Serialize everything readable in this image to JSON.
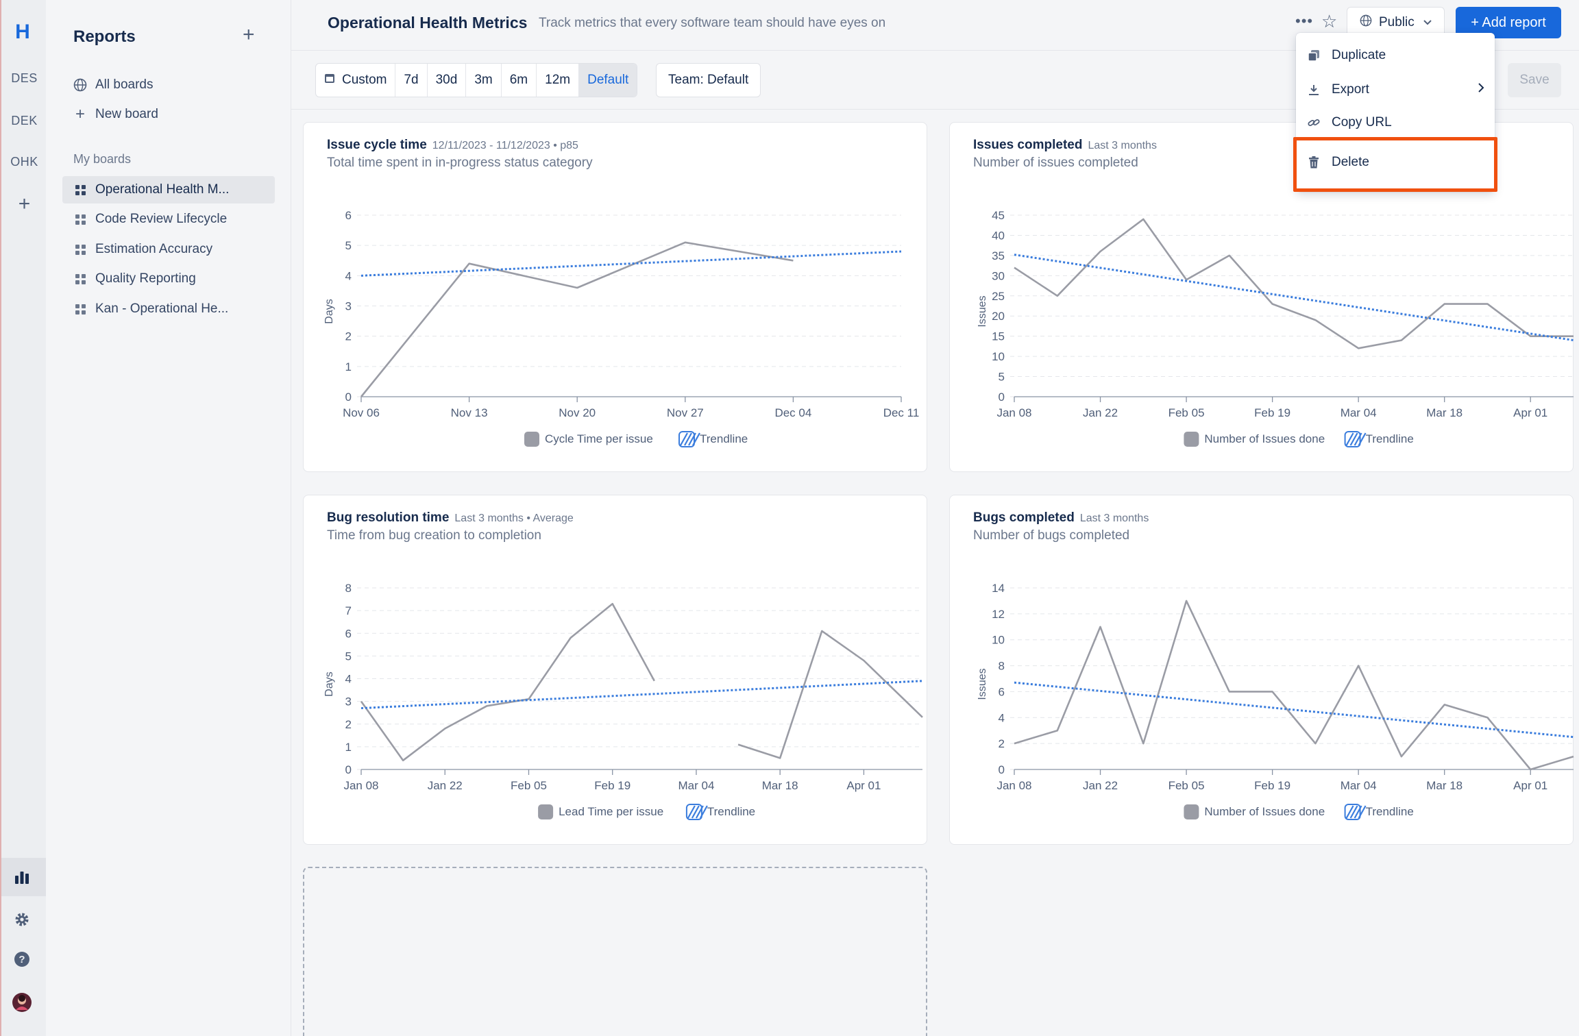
{
  "rail": {
    "logo": "H",
    "projects": [
      "DES",
      "DEK",
      "OHK"
    ],
    "add": "+"
  },
  "sidebar": {
    "title": "Reports",
    "nav": [
      {
        "label": "All boards",
        "icon": "globe-icon"
      },
      {
        "label": "New board",
        "icon": "plus-icon"
      }
    ],
    "section": "My boards",
    "boards": [
      {
        "label": "Operational Health M...",
        "active": true
      },
      {
        "label": "Code Review Lifecycle",
        "active": false
      },
      {
        "label": "Estimation Accuracy",
        "active": false
      },
      {
        "label": "Quality Reporting",
        "active": false
      },
      {
        "label": "Kan - Operational He...",
        "active": false
      }
    ]
  },
  "header": {
    "title": "Operational Health Metrics",
    "subtitle": "Track metrics that every software team should have eyes on",
    "visibility": "Public",
    "add_report": "+ Add report"
  },
  "toolbar": {
    "ranges": [
      "Custom",
      "7d",
      "30d",
      "3m",
      "6m",
      "12m",
      "Default"
    ],
    "selected_range": "Default",
    "team": "Team: Default",
    "save": "Save"
  },
  "menu": {
    "items": [
      {
        "label": "Duplicate",
        "icon": "duplicate-icon"
      },
      {
        "label": "Export",
        "icon": "download-icon",
        "submenu": true
      },
      {
        "label": "Copy URL",
        "icon": "link-icon"
      },
      {
        "label": "Delete",
        "icon": "trash-icon"
      }
    ],
    "highlighted": "Delete"
  },
  "colors": {
    "accent": "#1868db",
    "series": "#9a9ca5",
    "trend": "#3b7ddd",
    "highlight": "#f0500f"
  },
  "chart_data": [
    {
      "type": "line",
      "title": "Issue cycle time",
      "meta": "12/11/2023 - 11/12/2023 • p85",
      "subtitle": "Total time spent in in-progress status category",
      "ylabel": "Days",
      "ylim": [
        0,
        6
      ],
      "yticks": [
        0,
        1,
        2,
        3,
        4,
        5,
        6
      ],
      "xlim": [
        0,
        35
      ],
      "xticks": [
        {
          "v": 0,
          "label": "Nov 06"
        },
        {
          "v": 7,
          "label": "Nov 13"
        },
        {
          "v": 14,
          "label": "Nov 20"
        },
        {
          "v": 21,
          "label": "Nov 27"
        },
        {
          "v": 28,
          "label": "Dec 04"
        },
        {
          "v": 35,
          "label": "Dec 11"
        }
      ],
      "series": [
        {
          "name": "Cycle Time per issue",
          "points": [
            [
              0,
              0
            ],
            [
              7,
              4.4
            ],
            [
              14,
              3.6
            ],
            [
              21,
              5.1
            ],
            [
              28,
              4.5
            ]
          ]
        }
      ],
      "trend": {
        "name": "Trendline",
        "from": [
          0,
          4.0
        ],
        "to": [
          35,
          4.8
        ]
      }
    },
    {
      "type": "line",
      "title": "Issues completed",
      "meta": "Last 3 months",
      "subtitle": "Number of issues completed",
      "ylabel": "Issues",
      "ylim": [
        0,
        45
      ],
      "yticks": [
        0,
        5,
        10,
        15,
        20,
        25,
        30,
        35,
        40,
        45
      ],
      "xlim": [
        0,
        13
      ],
      "xticks": [
        {
          "v": 0,
          "label": "Jan 08"
        },
        {
          "v": 2,
          "label": "Jan 22"
        },
        {
          "v": 4,
          "label": "Feb 05"
        },
        {
          "v": 6,
          "label": "Feb 19"
        },
        {
          "v": 8,
          "label": "Mar 04"
        },
        {
          "v": 10,
          "label": "Mar 18"
        },
        {
          "v": 12,
          "label": "Apr 01"
        }
      ],
      "series": [
        {
          "name": "Number of Issues done",
          "points": [
            [
              0,
              32
            ],
            [
              1,
              25
            ],
            [
              2,
              36
            ],
            [
              3,
              44
            ],
            [
              4,
              29
            ],
            [
              5,
              35
            ],
            [
              6,
              23
            ],
            [
              7,
              19
            ],
            [
              8,
              12
            ],
            [
              9,
              14
            ],
            [
              10,
              23
            ],
            [
              11,
              23
            ],
            [
              12,
              15
            ],
            [
              13,
              15
            ]
          ]
        }
      ],
      "trend": {
        "name": "Trendline",
        "from": [
          0,
          35.2
        ],
        "to": [
          13,
          14
        ]
      }
    },
    {
      "type": "line",
      "title": "Bug resolution time",
      "meta": "Last 3 months • Average",
      "subtitle": "Time from bug creation to completion",
      "ylabel": "Days",
      "ylim": [
        0,
        8
      ],
      "yticks": [
        0,
        1,
        2,
        3,
        4,
        5,
        6,
        7,
        8
      ],
      "xlim": [
        0,
        13.4
      ],
      "xticks": [
        {
          "v": 0,
          "label": "Jan 08"
        },
        {
          "v": 2,
          "label": "Jan 22"
        },
        {
          "v": 4,
          "label": "Feb 05"
        },
        {
          "v": 6,
          "label": "Feb 19"
        },
        {
          "v": 8,
          "label": "Mar 04"
        },
        {
          "v": 10,
          "label": "Mar 18"
        },
        {
          "v": 12,
          "label": "Apr 01"
        }
      ],
      "series": [
        {
          "name": "Lead Time per issue",
          "points": [
            [
              0,
              3.0
            ],
            [
              1,
              0.4
            ],
            [
              2,
              1.8
            ],
            [
              3,
              2.8
            ],
            [
              4,
              3.1
            ],
            [
              5,
              5.8
            ],
            [
              6,
              7.3
            ],
            [
              7,
              3.9
            ]
          ]
        },
        {
          "name": "",
          "points": [
            [
              9,
              1.1
            ],
            [
              10,
              0.5
            ],
            [
              11,
              6.1
            ],
            [
              12,
              4.8
            ],
            [
              13.4,
              2.3
            ]
          ]
        }
      ],
      "trend": {
        "name": "Trendline",
        "from": [
          0,
          2.7
        ],
        "to": [
          13.4,
          3.9
        ]
      }
    },
    {
      "type": "line",
      "title": "Bugs completed",
      "meta": "Last 3 months",
      "subtitle": "Number of bugs completed",
      "ylabel": "Issues",
      "ylim": [
        0,
        14
      ],
      "yticks": [
        0,
        2,
        4,
        6,
        8,
        10,
        12,
        14
      ],
      "xlim": [
        0,
        13
      ],
      "xticks": [
        {
          "v": 0,
          "label": "Jan 08"
        },
        {
          "v": 2,
          "label": "Jan 22"
        },
        {
          "v": 4,
          "label": "Feb 05"
        },
        {
          "v": 6,
          "label": "Feb 19"
        },
        {
          "v": 8,
          "label": "Mar 04"
        },
        {
          "v": 10,
          "label": "Mar 18"
        },
        {
          "v": 12,
          "label": "Apr 01"
        }
      ],
      "series": [
        {
          "name": "Number of Issues done",
          "points": [
            [
              0,
              2
            ],
            [
              1,
              3
            ],
            [
              2,
              11
            ],
            [
              3,
              2
            ],
            [
              4,
              13
            ],
            [
              5,
              6
            ],
            [
              6,
              6
            ],
            [
              7,
              2
            ],
            [
              8,
              8
            ],
            [
              9,
              1
            ],
            [
              10,
              5
            ],
            [
              11,
              4
            ],
            [
              12,
              0
            ],
            [
              13,
              1
            ]
          ]
        }
      ],
      "trend": {
        "name": "Trendline",
        "from": [
          0,
          6.7
        ],
        "to": [
          13,
          2.5
        ]
      }
    }
  ]
}
